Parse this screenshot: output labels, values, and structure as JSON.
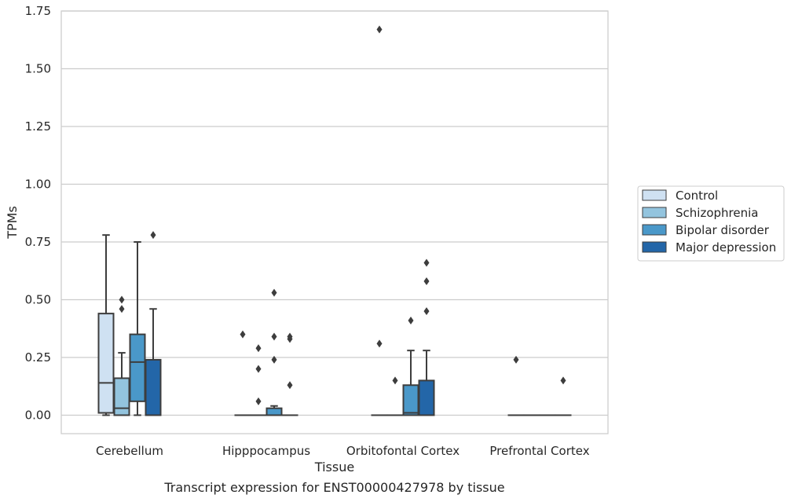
{
  "chart_data": {
    "type": "box",
    "title": "",
    "xlabel": "Tissue",
    "ylabel": "TPMs",
    "caption": "Transcript expression for ENST00000427978 by tissue",
    "ylim": [
      -0.08,
      1.75
    ],
    "yticks": [
      "0.00",
      "0.25",
      "0.50",
      "0.75",
      "1.00",
      "1.25",
      "1.50",
      "1.75"
    ],
    "ytick_values": [
      0,
      0.25,
      0.5,
      0.75,
      1.0,
      1.25,
      1.5,
      1.75
    ],
    "grid": true,
    "legend_position": "right",
    "categories": [
      "Cerebellum",
      "Hipppocampus",
      "Orbitofontal Cortex",
      "Prefrontal Cortex"
    ],
    "series": [
      {
        "name": "Control",
        "color": "#cfe1f2",
        "boxes": [
          {
            "whislo": 0.0,
            "q1": 0.01,
            "med": 0.14,
            "q3": 0.44,
            "whishi": 0.78,
            "fliers": []
          },
          {
            "whislo": 0.0,
            "q1": 0.0,
            "med": 0.0,
            "q3": 0.0,
            "whishi": 0.0,
            "fliers": [
              0.35
            ]
          },
          {
            "whislo": 0.0,
            "q1": 0.0,
            "med": 0.0,
            "q3": 0.0,
            "whishi": 0.0,
            "fliers": [
              0.31,
              1.67
            ]
          },
          {
            "whislo": 0.0,
            "q1": 0.0,
            "med": 0.0,
            "q3": 0.0,
            "whishi": 0.0,
            "fliers": [
              0.24
            ]
          }
        ]
      },
      {
        "name": "Schizophrenia",
        "color": "#93c4de",
        "boxes": [
          {
            "whislo": 0.0,
            "q1": 0.0,
            "med": 0.03,
            "q3": 0.16,
            "whishi": 0.27,
            "fliers": [
              0.46,
              0.5
            ]
          },
          {
            "whislo": 0.0,
            "q1": 0.0,
            "med": 0.0,
            "q3": 0.0,
            "whishi": 0.0,
            "fliers": [
              0.06,
              0.2,
              0.29
            ]
          },
          {
            "whislo": 0.0,
            "q1": 0.0,
            "med": 0.0,
            "q3": 0.0,
            "whishi": 0.0,
            "fliers": [
              0.15
            ]
          },
          {
            "whislo": 0.0,
            "q1": 0.0,
            "med": 0.0,
            "q3": 0.0,
            "whishi": 0.0,
            "fliers": []
          }
        ]
      },
      {
        "name": "Bipolar disorder",
        "color": "#4a98c9",
        "boxes": [
          {
            "whislo": 0.0,
            "q1": 0.06,
            "med": 0.23,
            "q3": 0.35,
            "whishi": 0.75,
            "fliers": []
          },
          {
            "whislo": 0.0,
            "q1": 0.0,
            "med": 0.0,
            "q3": 0.03,
            "whishi": 0.04,
            "fliers": [
              0.24,
              0.34,
              0.53
            ]
          },
          {
            "whislo": 0.0,
            "q1": 0.0,
            "med": 0.01,
            "q3": 0.13,
            "whishi": 0.28,
            "fliers": [
              0.41
            ]
          },
          {
            "whislo": 0.0,
            "q1": 0.0,
            "med": 0.0,
            "q3": 0.0,
            "whishi": 0.0,
            "fliers": []
          }
        ]
      },
      {
        "name": "Major depression",
        "color": "#2366a8",
        "boxes": [
          {
            "whislo": 0.0,
            "q1": 0.0,
            "med": 0.0,
            "q3": 0.24,
            "whishi": 0.46,
            "fliers": [
              0.78
            ]
          },
          {
            "whislo": 0.0,
            "q1": 0.0,
            "med": 0.0,
            "q3": 0.0,
            "whishi": 0.0,
            "fliers": [
              0.13,
              0.33,
              0.34
            ]
          },
          {
            "whislo": 0.0,
            "q1": 0.0,
            "med": 0.0,
            "q3": 0.15,
            "whishi": 0.28,
            "fliers": [
              0.45,
              0.58,
              0.66
            ]
          },
          {
            "whislo": 0.0,
            "q1": 0.0,
            "med": 0.0,
            "q3": 0.0,
            "whishi": 0.0,
            "fliers": [
              0.15
            ]
          }
        ]
      }
    ]
  }
}
